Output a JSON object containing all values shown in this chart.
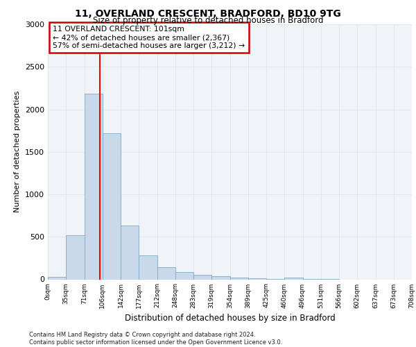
{
  "title1": "11, OVERLAND CRESCENT, BRADFORD, BD10 9TG",
  "title2": "Size of property relative to detached houses in Bradford",
  "xlabel": "Distribution of detached houses by size in Bradford",
  "ylabel": "Number of detached properties",
  "bin_labels": [
    "0sqm",
    "35sqm",
    "71sqm",
    "106sqm",
    "142sqm",
    "177sqm",
    "212sqm",
    "248sqm",
    "283sqm",
    "319sqm",
    "354sqm",
    "389sqm",
    "425sqm",
    "460sqm",
    "496sqm",
    "531sqm",
    "566sqm",
    "602sqm",
    "637sqm",
    "673sqm",
    "708sqm"
  ],
  "bar_values": [
    30,
    520,
    2180,
    1720,
    630,
    280,
    145,
    85,
    55,
    40,
    18,
    10,
    5,
    20,
    5,
    5,
    0,
    0,
    0,
    0
  ],
  "bar_color": "#c9d9ea",
  "bar_edge_color": "#7aaac8",
  "annotation_text": "11 OVERLAND CRESCENT: 101sqm\n← 42% of detached houses are smaller (2,367)\n57% of semi-detached houses are larger (3,212) →",
  "annotation_box_color": "#ffffff",
  "annotation_box_edge": "#cc0000",
  "ylim": [
    0,
    3000
  ],
  "yticks": [
    0,
    500,
    1000,
    1500,
    2000,
    2500,
    3000
  ],
  "grid_color": "#dde8f0",
  "footer_text": "Contains HM Land Registry data © Crown copyright and database right 2024.\nContains public sector information licensed under the Open Government Licence v3.0.",
  "bg_color": "#f0f4f8"
}
